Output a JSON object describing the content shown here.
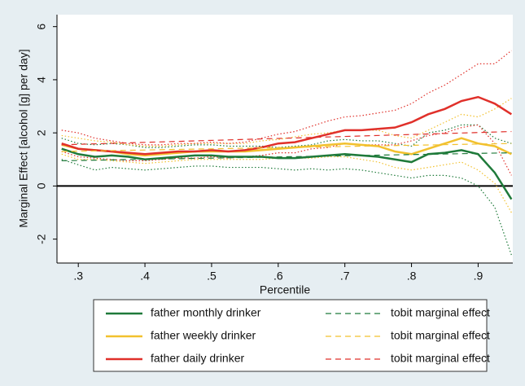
{
  "chart_data": {
    "type": "line",
    "ylabel": "Marginal Effect [alcohol [g] per day]",
    "xlabel": "Percentile",
    "x": [
      0.275,
      0.3,
      0.325,
      0.35,
      0.375,
      0.4,
      0.425,
      0.45,
      0.475,
      0.5,
      0.525,
      0.55,
      0.575,
      0.6,
      0.625,
      0.65,
      0.675,
      0.7,
      0.725,
      0.75,
      0.775,
      0.8,
      0.825,
      0.85,
      0.875,
      0.9,
      0.925,
      0.95
    ],
    "xlim": [
      0.268,
      0.952
    ],
    "ylim": [
      -2.9,
      6.45
    ],
    "xticks": [
      {
        "value": 0.3,
        "label": ".3"
      },
      {
        "value": 0.4,
        "label": ".4"
      },
      {
        "value": 0.5,
        "label": ".5"
      },
      {
        "value": 0.6,
        "label": ".6"
      },
      {
        "value": 0.7,
        "label": ".7"
      },
      {
        "value": 0.8,
        "label": ".8"
      },
      {
        "value": 0.9,
        "label": ".9"
      }
    ],
    "yticks": [
      -2,
      0,
      2,
      4,
      6
    ],
    "yline": 0,
    "series": [
      {
        "name": "father monthly drinker",
        "color": "#1f7a3a",
        "style": "solid",
        "values": [
          1.4,
          1.2,
          1.1,
          1.15,
          1.1,
          1.0,
          1.05,
          1.1,
          1.15,
          1.15,
          1.1,
          1.1,
          1.1,
          1.05,
          1.05,
          1.1,
          1.15,
          1.2,
          1.15,
          1.1,
          1.0,
          0.9,
          1.2,
          1.25,
          1.35,
          1.2,
          0.5,
          -0.5
        ],
        "ci_lower": [
          1.0,
          0.8,
          0.6,
          0.7,
          0.65,
          0.6,
          0.65,
          0.7,
          0.75,
          0.75,
          0.7,
          0.7,
          0.7,
          0.65,
          0.6,
          0.65,
          0.6,
          0.65,
          0.6,
          0.5,
          0.4,
          0.3,
          0.4,
          0.4,
          0.3,
          0,
          -0.8,
          -2.6
        ],
        "ci_upper": [
          1.8,
          1.6,
          1.55,
          1.6,
          1.55,
          1.45,
          1.45,
          1.5,
          1.55,
          1.55,
          1.5,
          1.5,
          1.5,
          1.45,
          1.5,
          1.55,
          1.7,
          1.75,
          1.7,
          1.7,
          1.6,
          1.5,
          2.0,
          2.1,
          2.3,
          2.3,
          1.8,
          1.6
        ]
      },
      {
        "name": "father weekly drinker",
        "color": "#f2c12e",
        "style": "solid",
        "values": [
          1.55,
          1.4,
          1.35,
          1.3,
          1.2,
          1.15,
          1.2,
          1.25,
          1.3,
          1.3,
          1.3,
          1.3,
          1.35,
          1.4,
          1.45,
          1.5,
          1.55,
          1.6,
          1.55,
          1.5,
          1.3,
          1.2,
          1.4,
          1.6,
          1.8,
          1.6,
          1.5,
          1.2
        ],
        "ci_lower": [
          1.2,
          1.0,
          1.0,
          0.95,
          0.9,
          0.85,
          0.9,
          0.95,
          1.0,
          1.0,
          1.0,
          1.0,
          1.0,
          1.05,
          1.05,
          1.05,
          1.1,
          1.1,
          1.0,
          0.9,
          0.7,
          0.6,
          0.7,
          0.8,
          0.9,
          0.6,
          0.1,
          -1.0
        ],
        "ci_upper": [
          1.9,
          1.8,
          1.7,
          1.65,
          1.55,
          1.5,
          1.5,
          1.55,
          1.6,
          1.6,
          1.6,
          1.6,
          1.7,
          1.75,
          1.85,
          1.95,
          2.0,
          2.1,
          2.1,
          2.1,
          1.9,
          1.8,
          2.1,
          2.4,
          2.7,
          2.6,
          2.9,
          3.3
        ]
      },
      {
        "name": "father daily drinker",
        "color": "#e0302a",
        "style": "solid",
        "values": [
          1.6,
          1.4,
          1.35,
          1.3,
          1.25,
          1.2,
          1.25,
          1.3,
          1.3,
          1.35,
          1.3,
          1.35,
          1.45,
          1.6,
          1.65,
          1.8,
          1.95,
          2.1,
          2.1,
          2.15,
          2.2,
          2.4,
          2.7,
          2.9,
          3.2,
          3.35,
          3.1,
          2.7
        ],
        "ci_lower": [
          1.3,
          1.1,
          1.05,
          1.0,
          0.95,
          0.95,
          1.0,
          1.05,
          1.05,
          1.1,
          1.05,
          1.1,
          1.15,
          1.25,
          1.25,
          1.4,
          1.45,
          1.6,
          1.55,
          1.55,
          1.55,
          1.7,
          1.9,
          2.0,
          2.2,
          2.3,
          1.6,
          0.4
        ],
        "ci_upper": [
          2.1,
          2.0,
          1.8,
          1.7,
          1.6,
          1.55,
          1.55,
          1.6,
          1.6,
          1.65,
          1.6,
          1.65,
          1.8,
          1.95,
          2.05,
          2.25,
          2.45,
          2.6,
          2.65,
          2.75,
          2.85,
          3.1,
          3.5,
          3.8,
          4.2,
          4.6,
          4.6,
          5.1
        ]
      },
      {
        "name": "tobit marginal effect",
        "color": "#1f7a3a",
        "style": "dash",
        "x": [
          0.275,
          0.95
        ],
        "values": [
          0.95,
          1.25
        ]
      },
      {
        "name": "tobit marginal effect",
        "color": "#f2c12e",
        "style": "dash",
        "x": [
          0.275,
          0.95
        ],
        "values": [
          1.3,
          1.6
        ]
      },
      {
        "name": "tobit marginal effect",
        "color": "#e0302a",
        "style": "dash",
        "x": [
          0.275,
          0.95
        ],
        "values": [
          1.55,
          2.05
        ]
      }
    ]
  }
}
